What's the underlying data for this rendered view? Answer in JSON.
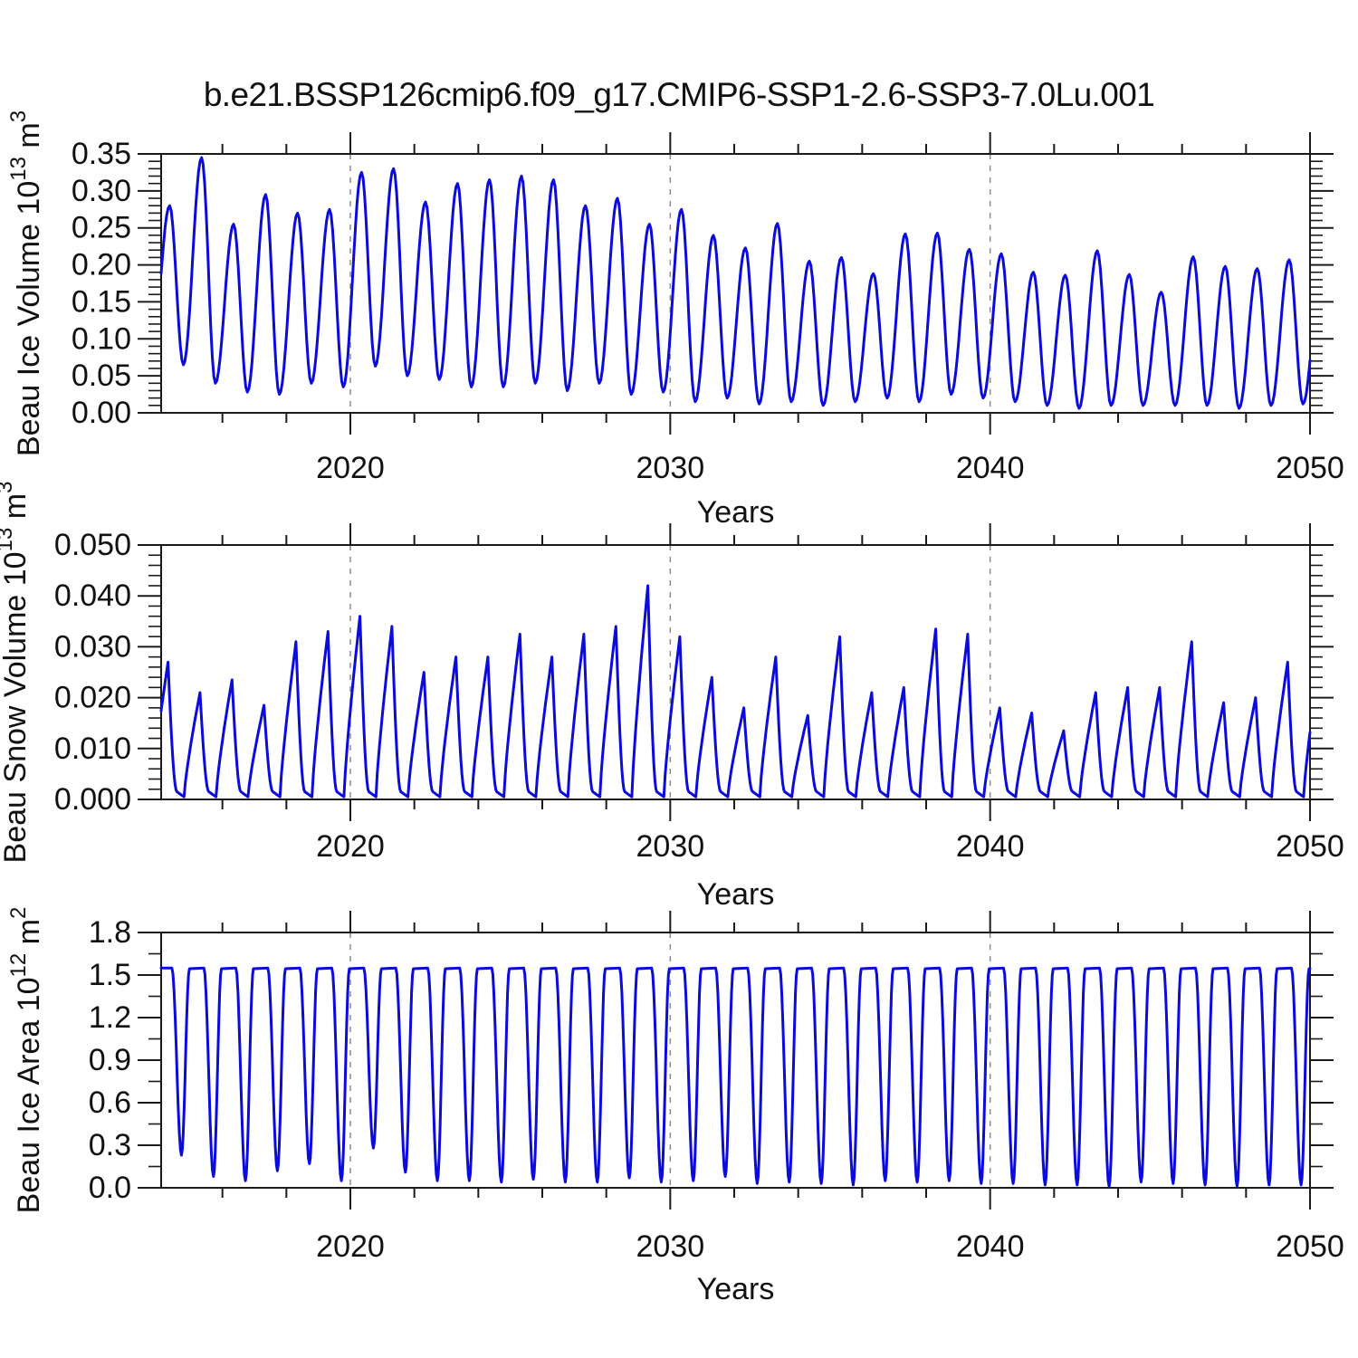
{
  "title": "b.e21.BSSP126cmip6.f09_g17.CMIP6-SSP1-2.6-SSP3-7.0Lu.001",
  "xlabel": "Years",
  "colors": {
    "line": "#0b0bdc",
    "axis": "#1a1a1a",
    "grid": "#8c8c8c",
    "background": "#ffffff"
  },
  "x_axis": {
    "range_years": [
      2014,
      2050
    ],
    "major_tick_years": [
      2020,
      2030,
      2040,
      2050
    ],
    "major_tick_labels": [
      "2020",
      "2030",
      "2040",
      "2050"
    ],
    "minor_tick_step_years": 2,
    "gridline_years": [
      2020,
      2030,
      2040
    ]
  },
  "chart_data": [
    {
      "id": "beau-ice-volume",
      "type": "line",
      "ylabel_text": "Beau Ice Volume 10^13 m^3",
      "ylabel_parts": [
        "Beau Ice Volume 10",
        "13",
        " m",
        "3"
      ],
      "ylim": [
        0,
        0.35
      ],
      "ytick_values": [
        0,
        0.05,
        0.1,
        0.15,
        0.2,
        0.25,
        0.3,
        0.35
      ],
      "ytick_labels": [
        "0.00",
        "0.05",
        "0.10",
        "0.15",
        "0.20",
        "0.25",
        "0.30",
        "0.35"
      ],
      "y_minor_step": 0.01,
      "seasonality": "annual-cycle-peak-spring-trough-autumn",
      "years": [
        2014,
        2015,
        2016,
        2017,
        2018,
        2019,
        2020,
        2021,
        2022,
        2023,
        2024,
        2025,
        2026,
        2027,
        2028,
        2029,
        2030,
        2031,
        2032,
        2033,
        2034,
        2035,
        2036,
        2037,
        2038,
        2039,
        2040,
        2041,
        2042,
        2043,
        2044,
        2045,
        2046,
        2047,
        2048,
        2049
      ],
      "annual_peaks": [
        0.28,
        0.345,
        0.255,
        0.295,
        0.27,
        0.275,
        0.325,
        0.33,
        0.285,
        0.31,
        0.315,
        0.32,
        0.315,
        0.28,
        0.29,
        0.255,
        0.275,
        0.24,
        0.223,
        0.256,
        0.205,
        0.21,
        0.188,
        0.242,
        0.243,
        0.221,
        0.215,
        0.19,
        0.186,
        0.219,
        0.187,
        0.163,
        0.211,
        0.198,
        0.195,
        0.207
      ],
      "annual_troughs": [
        0.065,
        0.04,
        0.028,
        0.025,
        0.04,
        0.035,
        0.063,
        0.05,
        0.045,
        0.035,
        0.035,
        0.04,
        0.03,
        0.04,
        0.025,
        0.028,
        0.015,
        0.02,
        0.012,
        0.015,
        0.01,
        0.015,
        0.02,
        0.015,
        0.025,
        0.02,
        0.015,
        0.01,
        0.006,
        0.01,
        0.01,
        0.01,
        0.01,
        0.006,
        0.01,
        0.012
      ]
    },
    {
      "id": "beau-snow-volume",
      "type": "line",
      "ylabel_text": "Beau Snow Volume 10^13 m^3",
      "ylabel_parts": [
        "Beau Snow Volume 10",
        "13",
        " m",
        "3"
      ],
      "ylim": [
        0,
        0.05
      ],
      "ytick_values": [
        0,
        0.01,
        0.02,
        0.03,
        0.04,
        0.05
      ],
      "ytick_labels": [
        "0.000",
        "0.010",
        "0.020",
        "0.030",
        "0.040",
        "0.050"
      ],
      "y_minor_step": 0.002,
      "seasonality": "annual-cycle-peak-spring-zero-summer",
      "summer_floor": 0.0005,
      "years": [
        2014,
        2015,
        2016,
        2017,
        2018,
        2019,
        2020,
        2021,
        2022,
        2023,
        2024,
        2025,
        2026,
        2027,
        2028,
        2029,
        2030,
        2031,
        2032,
        2033,
        2034,
        2035,
        2036,
        2037,
        2038,
        2039,
        2040,
        2041,
        2042,
        2043,
        2044,
        2045,
        2046,
        2047,
        2048,
        2049
      ],
      "annual_peaks": [
        0.027,
        0.021,
        0.0235,
        0.0185,
        0.031,
        0.033,
        0.036,
        0.034,
        0.025,
        0.028,
        0.028,
        0.0325,
        0.028,
        0.0325,
        0.034,
        0.042,
        0.032,
        0.024,
        0.018,
        0.028,
        0.0165,
        0.032,
        0.021,
        0.022,
        0.0335,
        0.0325,
        0.018,
        0.017,
        0.0135,
        0.021,
        0.022,
        0.022,
        0.031,
        0.019,
        0.02,
        0.027
      ]
    },
    {
      "id": "beau-ice-area",
      "type": "line",
      "ylabel_text": "Beau Ice Area 10^12 m^2",
      "ylabel_parts": [
        "Beau Ice Area 10",
        "12",
        " m",
        "2"
      ],
      "ylim": [
        0,
        1.8
      ],
      "ytick_values": [
        0,
        0.3,
        0.6,
        0.9,
        1.2,
        1.5,
        1.8
      ],
      "ytick_labels": [
        "0.0",
        "0.3",
        "0.6",
        "0.9",
        "1.2",
        "1.5",
        "1.8"
      ],
      "y_minor_step": 0.15,
      "seasonality": "winter-plateau-summer-dip",
      "plateau_value": 1.55,
      "years": [
        2014,
        2015,
        2016,
        2017,
        2018,
        2019,
        2020,
        2021,
        2022,
        2023,
        2024,
        2025,
        2026,
        2027,
        2028,
        2029,
        2030,
        2031,
        2032,
        2033,
        2034,
        2035,
        2036,
        2037,
        2038,
        2039,
        2040,
        2041,
        2042,
        2043,
        2044,
        2045,
        2046,
        2047,
        2048,
        2049
      ],
      "annual_minima": [
        0.23,
        0.08,
        0.05,
        0.12,
        0.17,
        0.05,
        0.28,
        0.11,
        0.05,
        0.05,
        0.04,
        0.06,
        0.04,
        0.04,
        0.07,
        0.04,
        0.05,
        0.08,
        0.03,
        0.04,
        0.03,
        0.02,
        0.05,
        0.04,
        0.05,
        0.03,
        0.03,
        0.02,
        0.02,
        0.01,
        0.04,
        0.03,
        0.02,
        0.01,
        0.02,
        0.02
      ]
    }
  ]
}
